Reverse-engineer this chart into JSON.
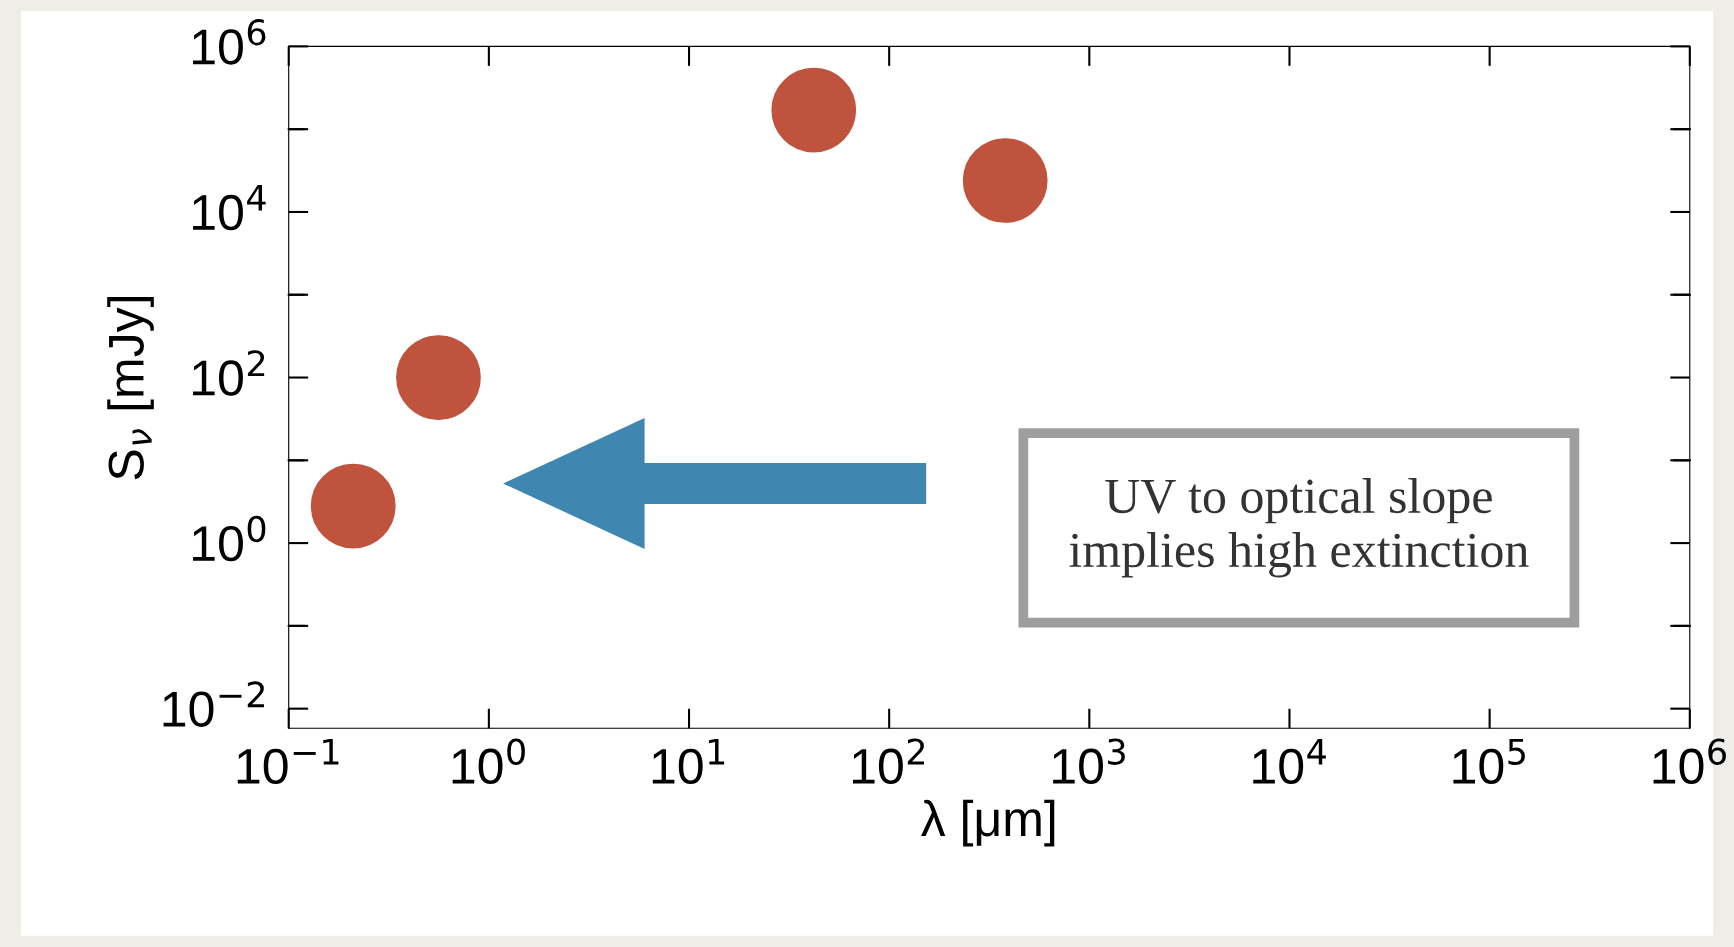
{
  "chart_data": {
    "type": "scatter",
    "xlabel": "λ [μm]",
    "ylabel": "S$_{ν}$ [mJy]",
    "x": [
      0.21,
      0.56,
      42,
      380
    ],
    "series": [
      {
        "color": "#c0533d",
        "values": [
          2.8,
          100,
          170000,
          24000
        ]
      }
    ],
    "marker": "circle",
    "log": "xy",
    "grid": false,
    "legend": false,
    "xlim": [
      0.1,
      1000000
    ],
    "ylim": [
      0.0058,
      1000000
    ],
    "xticks": [
      {
        "value": 0.1,
        "label": "10$^{−1}$"
      },
      {
        "value": 1,
        "label": "10$^{0}$"
      },
      {
        "value": 10,
        "label": "10$^{1}$"
      },
      {
        "value": 100,
        "label": "10$^{2}$"
      },
      {
        "value": 1000,
        "label": "10$^{3}$"
      },
      {
        "value": 10000,
        "label": "10$^{4}$"
      },
      {
        "value": 100000,
        "label": "10$^{5}$"
      },
      {
        "value": 1000000,
        "label": "10$^{6}$"
      }
    ],
    "yticks": [
      {
        "value": 0.01,
        "label": "10$^{−2}$"
      },
      {
        "value": 0.1,
        "label": null
      },
      {
        "value": 1,
        "label": "10$^{0}$"
      },
      {
        "value": 10,
        "label": null
      },
      {
        "value": 100,
        "label": "10$^{2}$"
      },
      {
        "value": 1000,
        "label": null
      },
      {
        "value": 10000,
        "label": "10$^{4}$"
      },
      {
        "value": 100000,
        "label": null
      },
      {
        "value": 1000000,
        "label": "10$^{6}$"
      }
    ],
    "annotations": [
      "UV to optical slope\nimplies high extinction"
    ]
  }
}
